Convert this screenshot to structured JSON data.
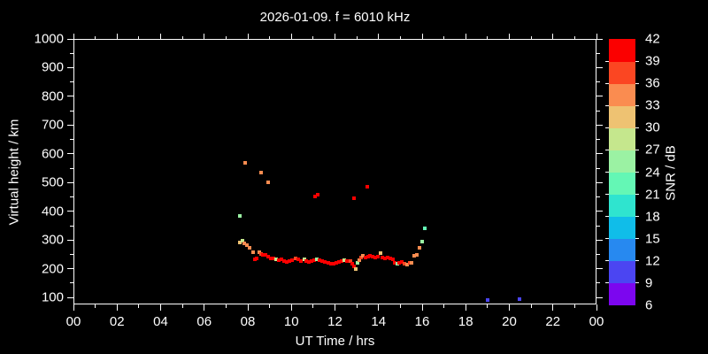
{
  "colors": {
    "background": "#000000",
    "foreground": "#ffffff"
  },
  "chart_data": {
    "type": "scatter",
    "title": "2026-01-09. f = 6010 kHz",
    "xlabel": "UT Time / hrs",
    "ylabel": "Virtual height / km",
    "xlim": [
      0,
      24
    ],
    "ylim": [
      76,
      1000
    ],
    "grid": false,
    "x_major_ticks": [
      0,
      2,
      4,
      6,
      8,
      10,
      12,
      14,
      16,
      18,
      20,
      22,
      24
    ],
    "x_tick_labels": [
      "00",
      "02",
      "04",
      "06",
      "08",
      "10",
      "12",
      "14",
      "16",
      "18",
      "20",
      "22",
      "00"
    ],
    "x_minor_ticks": [
      1,
      3,
      5,
      7,
      9,
      11,
      13,
      15,
      17,
      19,
      21,
      23
    ],
    "y_major_ticks": [
      100,
      200,
      300,
      400,
      500,
      600,
      700,
      800,
      900,
      1000
    ],
    "y_tick_labels": [
      "100",
      "200",
      "300",
      "400",
      "500",
      "600",
      "700",
      "800",
      "900",
      "1000"
    ],
    "y_minor_ticks": [
      150,
      250,
      350,
      450,
      550,
      650,
      750,
      850,
      950
    ],
    "colorbar": {
      "label": "SNR / dB",
      "min": 6,
      "max": 42,
      "step": 3,
      "ticks": [
        6,
        9,
        12,
        15,
        18,
        21,
        24,
        27,
        30,
        33,
        36,
        39,
        42
      ],
      "colors_bottom_to_top": [
        "#7C06EF",
        "#4B45F2",
        "#2789F0",
        "#10BDE9",
        "#2FE4CF",
        "#64F7B5",
        "#9BF2A3",
        "#C5E78D",
        "#EEC272",
        "#FA8C50",
        "#FB4622",
        "#FB0000"
      ]
    },
    "point_format": [
      "ut_hours",
      "virtual_height_km",
      "snr_db"
    ],
    "points": [
      [
        7.62,
        291,
        31
      ],
      [
        7.74,
        297,
        28
      ],
      [
        7.83,
        288,
        34
      ],
      [
        7.95,
        281,
        34
      ],
      [
        8.07,
        272,
        34
      ],
      [
        8.23,
        259,
        34
      ],
      [
        8.31,
        233,
        40
      ],
      [
        8.4,
        236,
        40
      ],
      [
        8.54,
        259,
        34
      ],
      [
        8.61,
        251,
        37
      ],
      [
        8.69,
        248,
        40
      ],
      [
        8.81,
        248,
        40
      ],
      [
        8.93,
        242,
        40
      ],
      [
        9.05,
        236,
        40
      ],
      [
        9.17,
        236,
        40
      ],
      [
        9.29,
        232,
        28
      ],
      [
        9.42,
        230,
        40
      ],
      [
        9.54,
        233,
        40
      ],
      [
        9.66,
        226,
        40
      ],
      [
        9.79,
        223,
        40
      ],
      [
        9.91,
        226,
        40
      ],
      [
        10.03,
        230,
        40
      ],
      [
        10.19,
        236,
        37
      ],
      [
        10.31,
        233,
        40
      ],
      [
        10.44,
        226,
        40
      ],
      [
        10.58,
        232,
        28
      ],
      [
        10.68,
        226,
        40
      ],
      [
        10.81,
        223,
        40
      ],
      [
        10.93,
        226,
        40
      ],
      [
        11.05,
        230,
        40
      ],
      [
        11.17,
        233,
        25
      ],
      [
        11.3,
        230,
        40
      ],
      [
        11.42,
        226,
        40
      ],
      [
        11.54,
        223,
        40
      ],
      [
        11.7,
        220,
        40
      ],
      [
        11.82,
        217,
        40
      ],
      [
        11.94,
        217,
        40
      ],
      [
        12.06,
        220,
        40
      ],
      [
        12.18,
        223,
        40
      ],
      [
        12.3,
        226,
        40
      ],
      [
        12.43,
        230,
        28
      ],
      [
        12.55,
        226,
        40
      ],
      [
        12.71,
        226,
        37
      ],
      [
        12.79,
        217,
        40
      ],
      [
        12.87,
        208,
        40
      ],
      [
        12.95,
        199,
        31
      ],
      [
        13.03,
        220,
        25
      ],
      [
        13.11,
        230,
        34
      ],
      [
        13.19,
        239,
        37
      ],
      [
        13.28,
        245,
        34
      ],
      [
        13.4,
        239,
        40
      ],
      [
        13.52,
        242,
        40
      ],
      [
        13.6,
        245,
        40
      ],
      [
        13.72,
        242,
        40
      ],
      [
        13.85,
        239,
        40
      ],
      [
        13.97,
        242,
        40
      ],
      [
        14.09,
        254,
        31
      ],
      [
        14.17,
        239,
        40
      ],
      [
        14.29,
        236,
        40
      ],
      [
        14.41,
        239,
        40
      ],
      [
        14.54,
        236,
        40
      ],
      [
        14.66,
        233,
        40
      ],
      [
        14.74,
        220,
        40
      ],
      [
        14.86,
        217,
        25
      ],
      [
        14.94,
        220,
        40
      ],
      [
        15.06,
        223,
        40
      ],
      [
        15.18,
        217,
        37
      ],
      [
        15.31,
        214,
        34
      ],
      [
        15.43,
        220,
        37
      ],
      [
        15.51,
        220,
        34
      ],
      [
        15.63,
        245,
        34
      ],
      [
        15.76,
        248,
        34
      ],
      [
        15.88,
        273,
        34
      ],
      [
        16.0,
        294,
        25
      ],
      [
        16.12,
        340,
        22
      ],
      [
        7.63,
        384,
        25
      ],
      [
        7.88,
        569,
        34
      ],
      [
        8.61,
        535,
        34
      ],
      [
        8.93,
        501,
        34
      ],
      [
        11.09,
        451,
        40
      ],
      [
        11.21,
        458,
        40
      ],
      [
        12.87,
        445,
        40
      ],
      [
        13.48,
        485,
        40
      ],
      [
        19.02,
        90,
        10
      ],
      [
        20.45,
        93,
        10
      ]
    ]
  }
}
